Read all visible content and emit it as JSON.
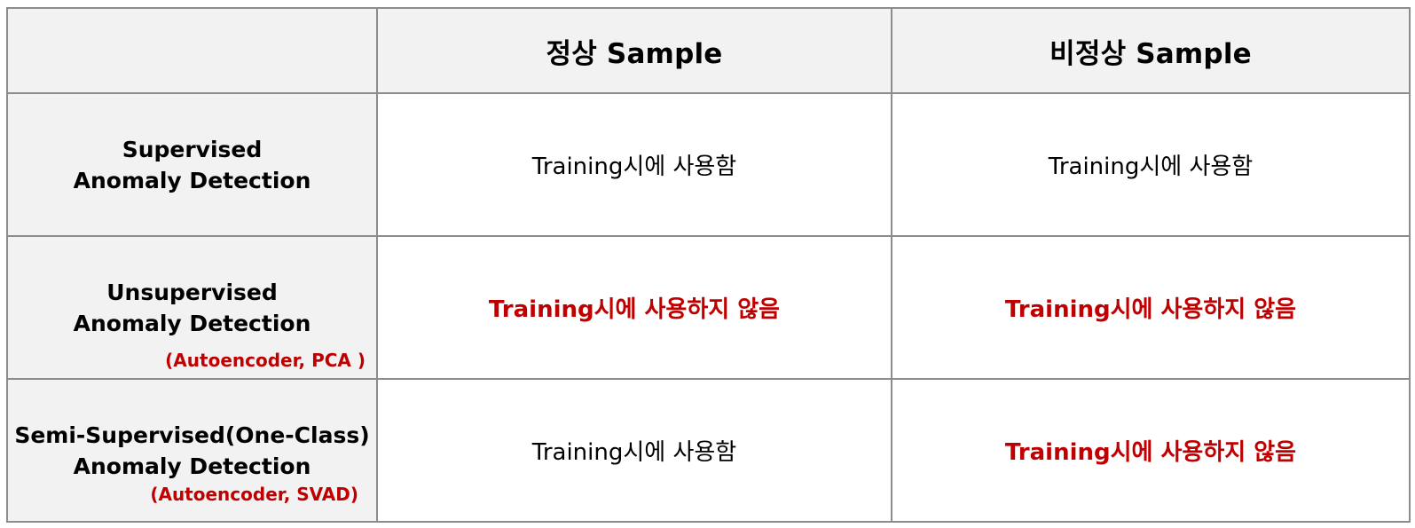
{
  "header": {
    "corner": "",
    "col_normal": "정상 Sample",
    "col_abnormal": "비정상 Sample"
  },
  "rows": [
    {
      "label_line1": "Supervised",
      "label_line2": "Anomaly Detection",
      "sub_label": "",
      "normal": "Training시에 사용함",
      "abnormal": "Training시에 사용함"
    },
    {
      "label_line1": "Unsupervised",
      "label_line2": "Anomaly Detection",
      "sub_label": "(Autoencoder, PCA )",
      "normal": "Training시에 사용하지 않음",
      "abnormal": "Training시에 사용하지 않음"
    },
    {
      "label_line1": "Semi-Supervised(One-Class)",
      "label_line2": "Anomaly Detection",
      "sub_label": "(Autoencoder, SVAD)",
      "normal": "Training시에 사용함",
      "abnormal": "Training시에 사용하지 않음"
    }
  ],
  "colors": {
    "highlight_red": "#c00000",
    "header_bg": "#f2f2f2",
    "border": "#8c8c8c"
  }
}
